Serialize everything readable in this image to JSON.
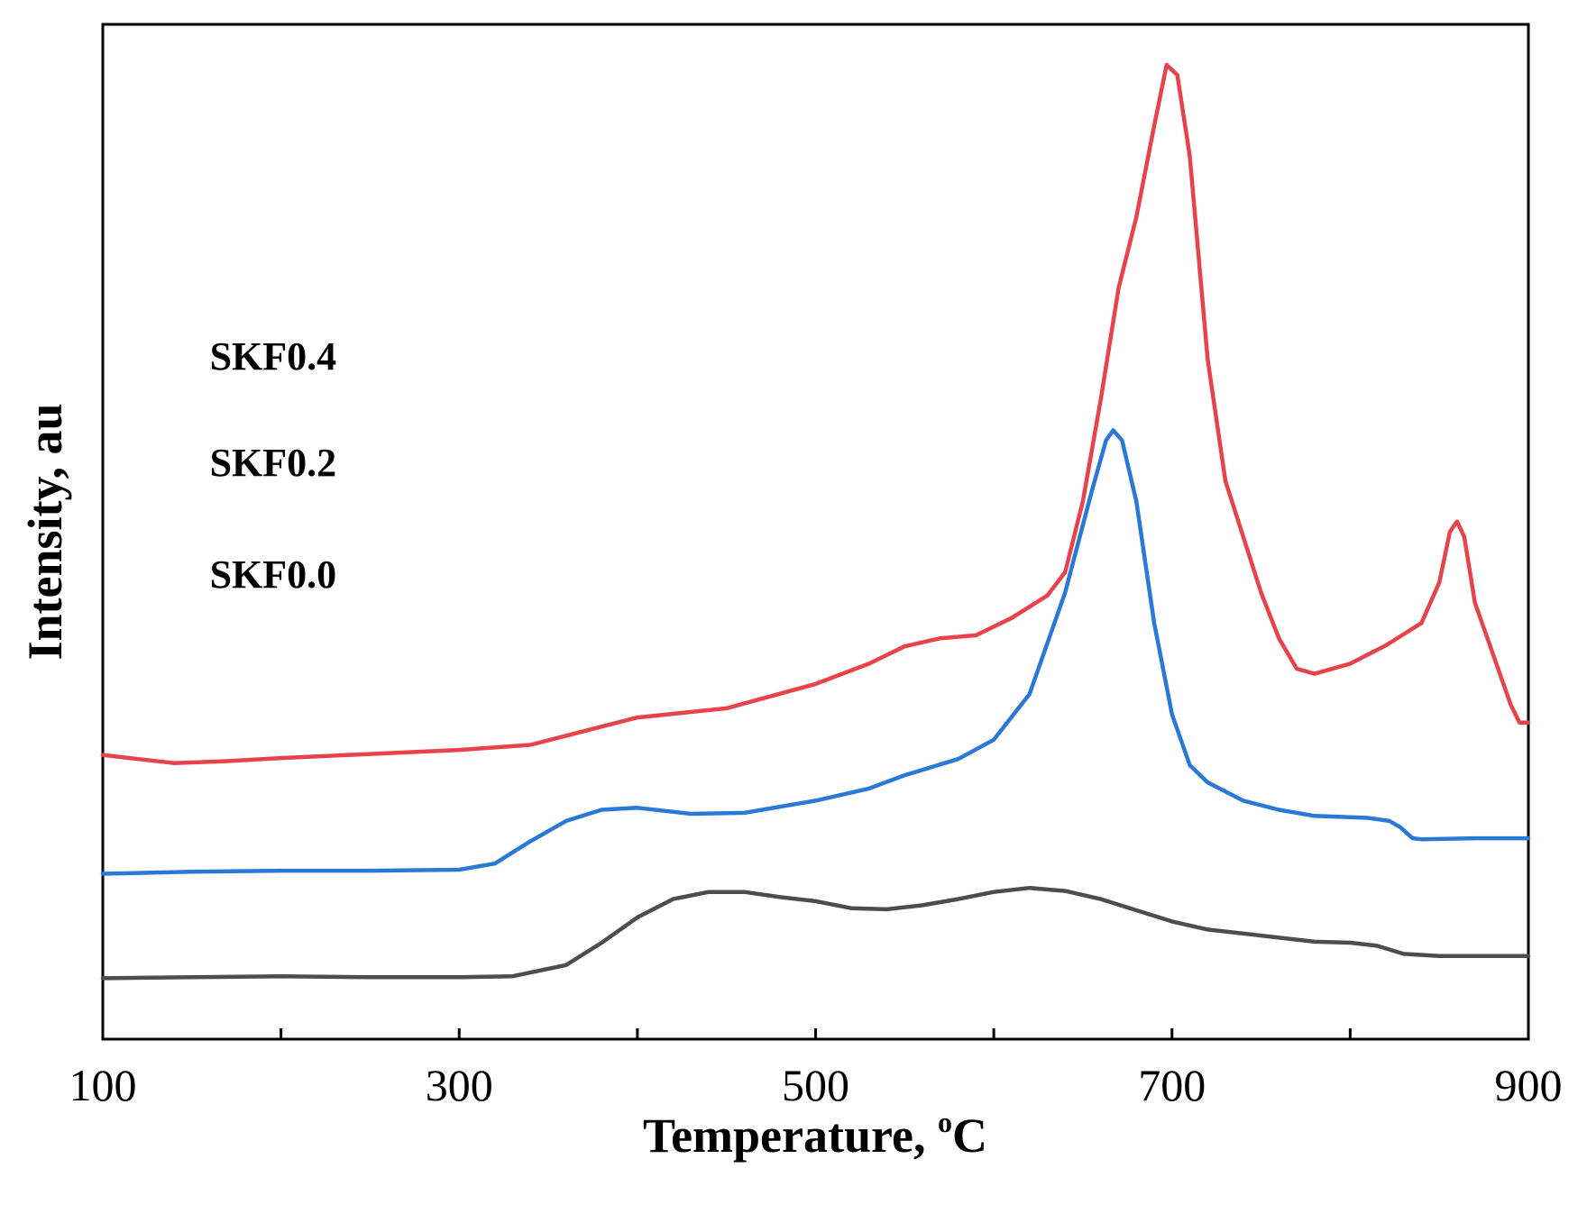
{
  "chart_data": {
    "type": "line",
    "title": "",
    "xlabel": "Temperature, °C",
    "xlabel_main": "Temperature, ",
    "xlabel_sup": "o",
    "xlabel_unit": "C",
    "ylabel": "Intensity, au",
    "xlim": [
      100,
      900
    ],
    "ylim": [
      0,
      100
    ],
    "xticks": [
      100,
      300,
      500,
      700,
      900
    ],
    "xtick_labels": [
      "100",
      "300",
      "500",
      "700",
      "900"
    ],
    "grid": false,
    "series": [
      {
        "name": "SKF0.4",
        "color": "#e8434a",
        "label_at": [
          160,
          66
        ],
        "points": [
          [
            100,
            28
          ],
          [
            110,
            27.8
          ],
          [
            140,
            27.2
          ],
          [
            170,
            27.4
          ],
          [
            200,
            27.7
          ],
          [
            250,
            28.1
          ],
          [
            300,
            28.5
          ],
          [
            340,
            29
          ],
          [
            380,
            30.8
          ],
          [
            400,
            31.7
          ],
          [
            450,
            32.6
          ],
          [
            500,
            35
          ],
          [
            530,
            37
          ],
          [
            550,
            38.7
          ],
          [
            570,
            39.5
          ],
          [
            590,
            39.8
          ],
          [
            610,
            41.5
          ],
          [
            630,
            43.7
          ],
          [
            640,
            46
          ],
          [
            650,
            53
          ],
          [
            660,
            63
          ],
          [
            670,
            74
          ],
          [
            680,
            81
          ],
          [
            690,
            90
          ],
          [
            697,
            96
          ],
          [
            703,
            95
          ],
          [
            710,
            87
          ],
          [
            720,
            67
          ],
          [
            730,
            55
          ],
          [
            750,
            44
          ],
          [
            760,
            39.5
          ],
          [
            770,
            36.5
          ],
          [
            780,
            36
          ],
          [
            800,
            37
          ],
          [
            820,
            38.8
          ],
          [
            840,
            41
          ],
          [
            850,
            45
          ],
          [
            856,
            50
          ],
          [
            860,
            51
          ],
          [
            864,
            49.5
          ],
          [
            870,
            43
          ],
          [
            880,
            38
          ],
          [
            890,
            33
          ],
          [
            895,
            31.2
          ],
          [
            900,
            31.2
          ]
        ]
      },
      {
        "name": "SKF0.2",
        "color": "#2a79d6",
        "label_at": [
          160,
          55.5
        ],
        "points": [
          [
            100,
            16.3
          ],
          [
            150,
            16.5
          ],
          [
            200,
            16.6
          ],
          [
            250,
            16.6
          ],
          [
            300,
            16.7
          ],
          [
            320,
            17.3
          ],
          [
            340,
            19.5
          ],
          [
            360,
            21.5
          ],
          [
            380,
            22.6
          ],
          [
            400,
            22.8
          ],
          [
            430,
            22.2
          ],
          [
            460,
            22.3
          ],
          [
            500,
            23.5
          ],
          [
            530,
            24.7
          ],
          [
            550,
            26
          ],
          [
            580,
            27.6
          ],
          [
            600,
            29.5
          ],
          [
            620,
            34
          ],
          [
            640,
            44
          ],
          [
            655,
            54
          ],
          [
            663,
            59
          ],
          [
            667,
            60
          ],
          [
            672,
            59
          ],
          [
            680,
            53
          ],
          [
            690,
            41
          ],
          [
            700,
            32
          ],
          [
            710,
            27
          ],
          [
            720,
            25.3
          ],
          [
            740,
            23.5
          ],
          [
            760,
            22.6
          ],
          [
            780,
            22
          ],
          [
            810,
            21.8
          ],
          [
            822,
            21.5
          ],
          [
            828,
            20.9
          ],
          [
            835,
            19.8
          ],
          [
            840,
            19.7
          ],
          [
            870,
            19.8
          ],
          [
            900,
            19.8
          ]
        ]
      },
      {
        "name": "SKF0.0",
        "color": "#4d4d4d",
        "label_at": [
          160,
          44.5
        ],
        "points": [
          [
            100,
            6
          ],
          [
            150,
            6.1
          ],
          [
            200,
            6.2
          ],
          [
            250,
            6.1
          ],
          [
            300,
            6.1
          ],
          [
            330,
            6.2
          ],
          [
            360,
            7.3
          ],
          [
            380,
            9.5
          ],
          [
            400,
            12
          ],
          [
            420,
            13.8
          ],
          [
            440,
            14.5
          ],
          [
            460,
            14.5
          ],
          [
            480,
            14
          ],
          [
            500,
            13.6
          ],
          [
            520,
            12.9
          ],
          [
            540,
            12.8
          ],
          [
            560,
            13.2
          ],
          [
            580,
            13.8
          ],
          [
            600,
            14.5
          ],
          [
            620,
            14.9
          ],
          [
            640,
            14.6
          ],
          [
            660,
            13.8
          ],
          [
            680,
            12.7
          ],
          [
            700,
            11.6
          ],
          [
            720,
            10.8
          ],
          [
            750,
            10.2
          ],
          [
            780,
            9.6
          ],
          [
            800,
            9.5
          ],
          [
            815,
            9.2
          ],
          [
            830,
            8.4
          ],
          [
            850,
            8.2
          ],
          [
            900,
            8.2
          ]
        ]
      }
    ]
  }
}
